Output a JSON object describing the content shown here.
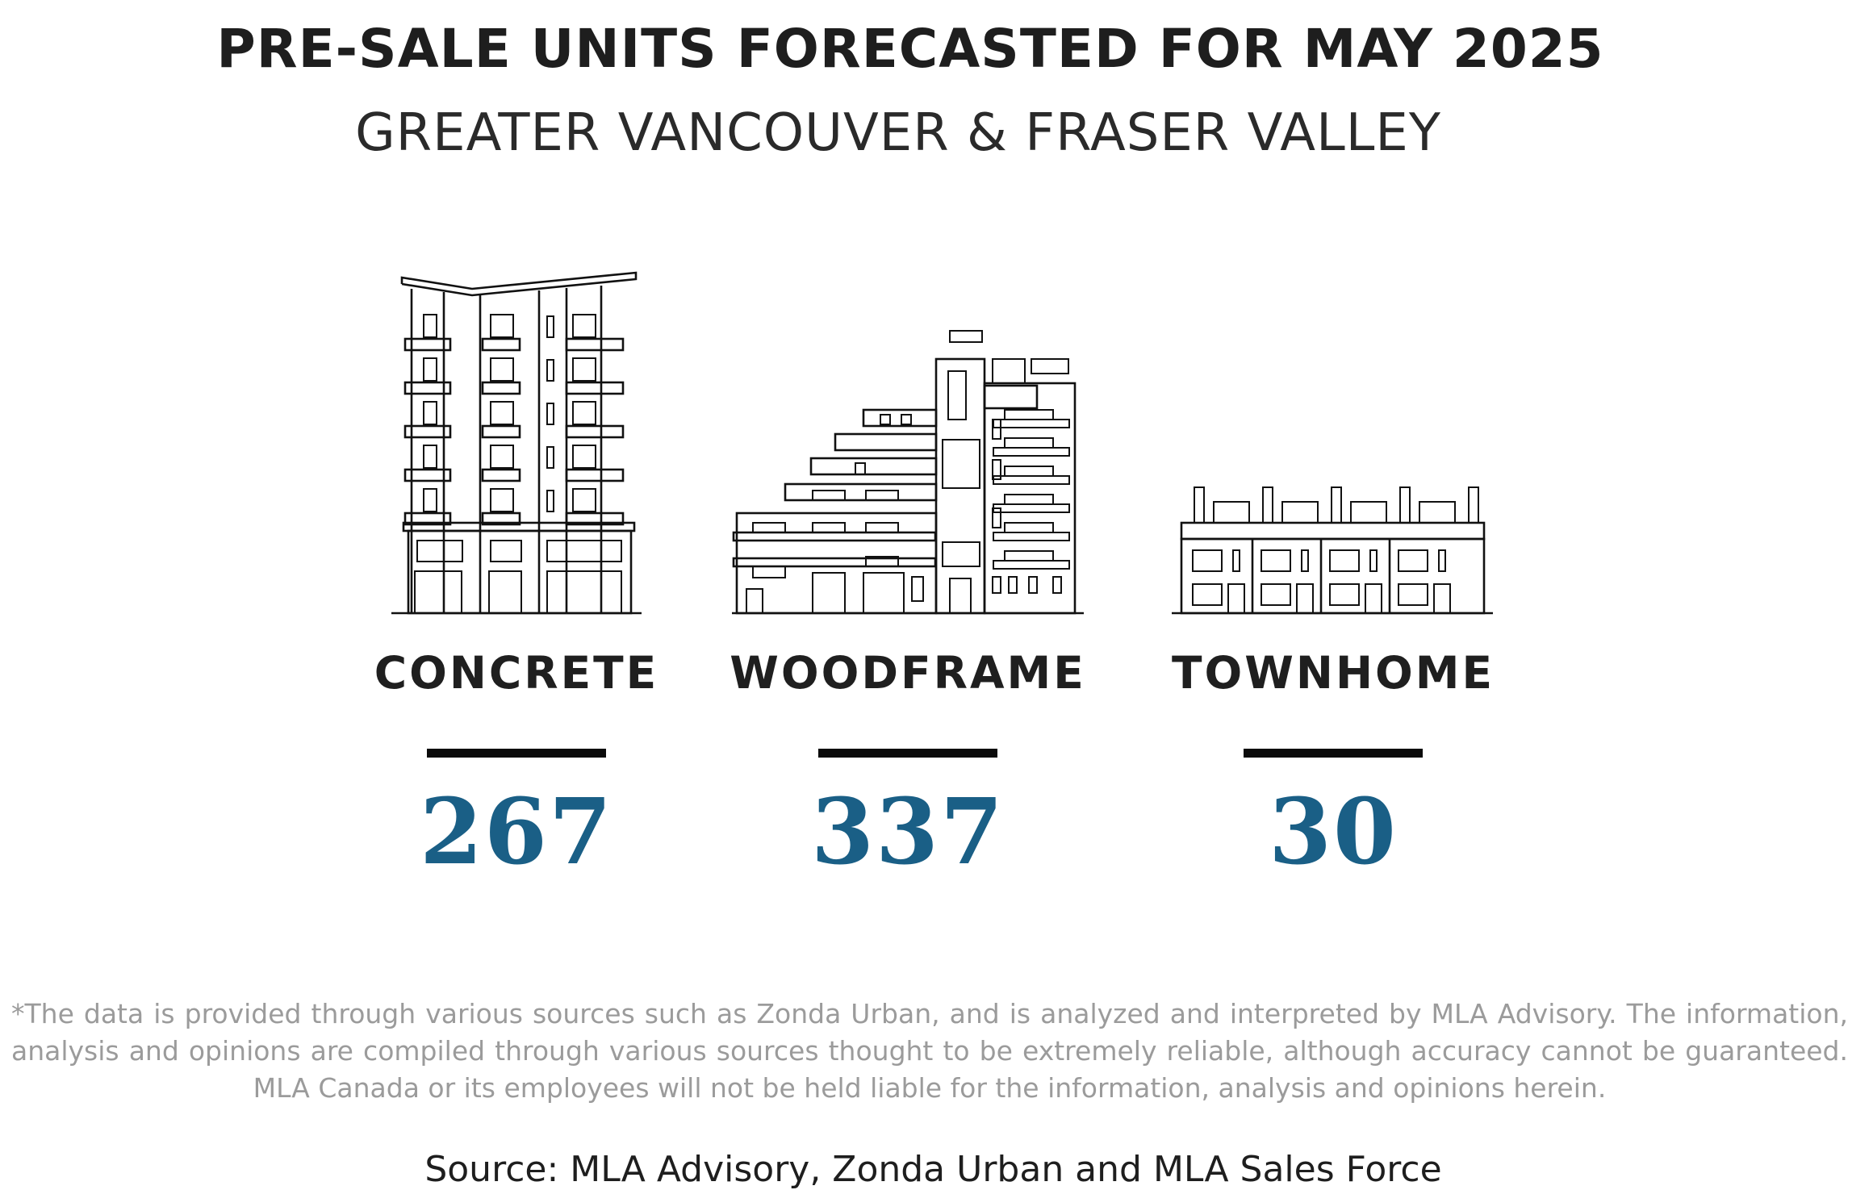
{
  "title": "PRE-SALE UNITS FORECASTED FOR MAY 2025",
  "subtitle": "GREATER VANCOUVER & FRASER VALLEY",
  "categories": [
    {
      "label": "CONCRETE",
      "value": "267",
      "icon": "concrete-highrise-icon"
    },
    {
      "label": "WOODFRAME",
      "value": "337",
      "icon": "woodframe-midrise-icon"
    },
    {
      "label": "TOWNHOME",
      "value": "30",
      "icon": "townhome-row-icon"
    }
  ],
  "colors": {
    "value": "#1a5f86",
    "text": "#1e1e1e",
    "disclaimer": "#9b9b9b"
  },
  "disclaimer": "*The data is provided through various sources such as Zonda Urban, and is analyzed and interpreted by MLA Advisory. The information, analysis and opinions are compiled through various sources thought to be extremely reliable, although accuracy cannot be guaranteed. MLA Canada or its employees will not be held liable for the information, analysis and opinions herein.",
  "source": "Source: MLA Advisory, Zonda Urban and MLA Sales Force"
}
